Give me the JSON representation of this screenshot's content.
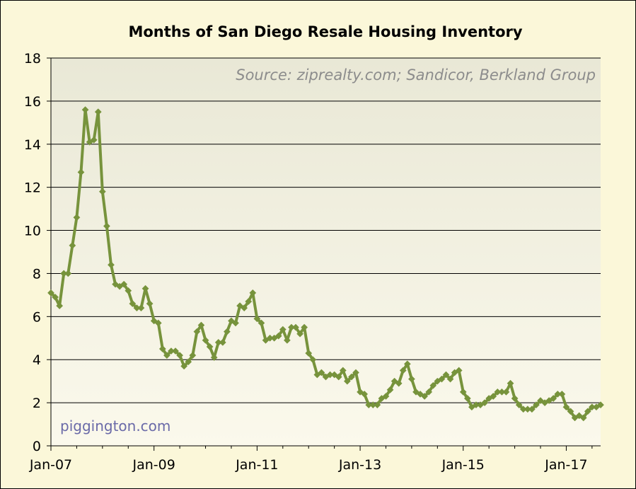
{
  "chart_data": {
    "type": "line",
    "title": "Months of San Diego Resale Housing Inventory",
    "xlabel": "",
    "ylabel": "",
    "ylim": [
      0,
      18
    ],
    "yticks": [
      0,
      2,
      4,
      6,
      8,
      10,
      12,
      14,
      16,
      18
    ],
    "xticks": [
      "Jan-07",
      "Jan-09",
      "Jan-11",
      "Jan-13",
      "Jan-15",
      "Jan-17"
    ],
    "x_start": "Jan-07",
    "x_end": "Sep-17",
    "grid": true,
    "background_color": "#fbf7d9",
    "line_color": "#77933c",
    "marker": "diamond",
    "source_note": "Source: ziprealty.com; Sandicor, Berkland Group",
    "credit": "piggington.com",
    "series": [
      {
        "values": [
          7.1,
          6.9,
          6.5,
          8.0,
          8.0,
          9.3,
          10.6,
          12.7,
          15.6,
          14.1,
          14.2,
          15.5,
          11.8,
          10.2,
          8.4,
          7.5,
          7.4,
          7.5,
          7.2,
          6.6,
          6.4,
          6.4,
          7.3,
          6.6,
          5.8,
          5.7,
          4.5,
          4.2,
          4.4,
          4.4,
          4.2,
          3.7,
          3.9,
          4.2,
          5.3,
          5.6,
          4.9,
          4.6,
          4.1,
          4.8,
          4.8,
          5.3,
          5.8,
          5.7,
          6.5,
          6.4,
          6.7,
          7.1,
          5.9,
          5.7,
          4.9,
          5.0,
          5.0,
          5.1,
          5.4,
          4.9,
          5.5,
          5.5,
          5.2,
          5.5,
          4.3,
          4.0,
          3.3,
          3.4,
          3.2,
          3.3,
          3.3,
          3.2,
          3.5,
          3.0,
          3.2,
          3.4,
          2.5,
          2.4,
          1.9,
          1.9,
          1.9,
          2.2,
          2.3,
          2.6,
          3.0,
          2.9,
          3.5,
          3.8,
          3.1,
          2.5,
          2.4,
          2.3,
          2.5,
          2.8,
          3.0,
          3.1,
          3.3,
          3.1,
          3.4,
          3.5,
          2.5,
          2.2,
          1.8,
          1.9,
          1.9,
          2.0,
          2.2,
          2.3,
          2.5,
          2.5,
          2.5,
          2.9,
          2.2,
          1.9,
          1.7,
          1.7,
          1.7,
          1.9,
          2.1,
          2.0,
          2.1,
          2.2,
          2.4,
          2.4,
          1.8,
          1.6,
          1.3,
          1.4,
          1.3,
          1.6,
          1.8,
          1.8,
          1.9
        ]
      }
    ]
  }
}
